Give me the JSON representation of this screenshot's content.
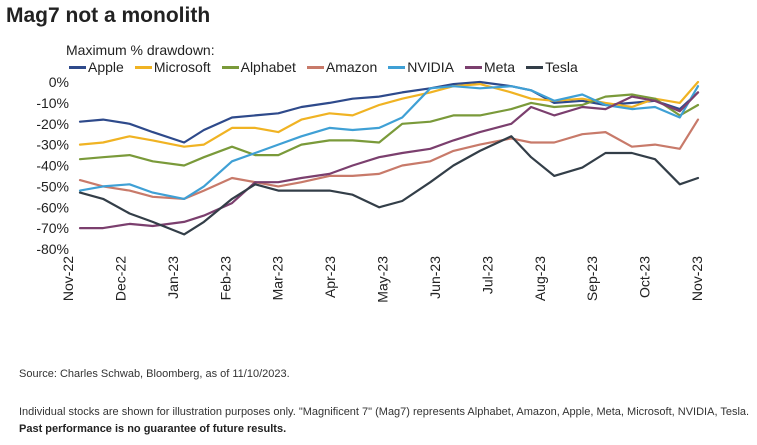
{
  "title": "Mag7 not a monolith",
  "legend_title": "Maximum % drawdown:",
  "source": "Source: Charles Schwab, Bloomberg, as of 11/10/2023.",
  "note_text": "Individual stocks are shown for illustration purposes only. \"Magnificent 7\" (Mag7) represents Alphabet, Amazon, Apple, Meta, Microsoft, NVIDIA, Tesla.",
  "note_bold": "Past performance is no guarantee of future results.",
  "chart_data": {
    "type": "line",
    "x_ticks": [
      "Nov-22",
      "Dec-22",
      "Jan-23",
      "Feb-23",
      "Mar-23",
      "Apr-23",
      "May-23",
      "Jun-23",
      "Jul-23",
      "Aug-23",
      "Sep-23",
      "Oct-23",
      "Nov-23"
    ],
    "y_ticks": [
      "0%",
      "-10%",
      "-20%",
      "-30%",
      "-40%",
      "-50%",
      "-60%",
      "-70%",
      "-80%"
    ],
    "ylim": [
      -80,
      0
    ],
    "x_range": [
      "2022-11-01",
      "2023-11-10"
    ],
    "grid": false,
    "legend_position": "top",
    "series": [
      {
        "name": "Apple",
        "color": "#2e4a8b",
        "points": [
          [
            "2022-11-01",
            -19
          ],
          [
            "2022-11-15",
            -18
          ],
          [
            "2022-12-01",
            -20
          ],
          [
            "2022-12-15",
            -24
          ],
          [
            "2023-01-03",
            -29
          ],
          [
            "2023-01-15",
            -23
          ],
          [
            "2023-02-01",
            -17
          ],
          [
            "2023-02-15",
            -16
          ],
          [
            "2023-03-01",
            -15
          ],
          [
            "2023-03-15",
            -12
          ],
          [
            "2023-04-01",
            -10
          ],
          [
            "2023-04-15",
            -8
          ],
          [
            "2023-05-01",
            -7
          ],
          [
            "2023-05-15",
            -5
          ],
          [
            "2023-06-01",
            -3
          ],
          [
            "2023-06-15",
            -1
          ],
          [
            "2023-07-01",
            0
          ],
          [
            "2023-07-20",
            -2
          ],
          [
            "2023-08-01",
            -4
          ],
          [
            "2023-08-15",
            -10
          ],
          [
            "2023-09-01",
            -9
          ],
          [
            "2023-09-15",
            -11
          ],
          [
            "2023-10-01",
            -10
          ],
          [
            "2023-10-15",
            -9
          ],
          [
            "2023-10-30",
            -13
          ],
          [
            "2023-11-10",
            -5
          ]
        ]
      },
      {
        "name": "Microsoft",
        "color": "#f0b323",
        "points": [
          [
            "2022-11-01",
            -30
          ],
          [
            "2022-11-15",
            -29
          ],
          [
            "2022-12-01",
            -26
          ],
          [
            "2022-12-15",
            -28
          ],
          [
            "2023-01-03",
            -31
          ],
          [
            "2023-01-15",
            -30
          ],
          [
            "2023-02-01",
            -22
          ],
          [
            "2023-02-15",
            -22
          ],
          [
            "2023-03-01",
            -24
          ],
          [
            "2023-03-15",
            -18
          ],
          [
            "2023-04-01",
            -15
          ],
          [
            "2023-04-15",
            -16
          ],
          [
            "2023-05-01",
            -11
          ],
          [
            "2023-05-15",
            -8
          ],
          [
            "2023-06-01",
            -5
          ],
          [
            "2023-06-15",
            -2
          ],
          [
            "2023-07-01",
            -1
          ],
          [
            "2023-07-20",
            -5
          ],
          [
            "2023-08-01",
            -8
          ],
          [
            "2023-08-15",
            -9
          ],
          [
            "2023-09-01",
            -8
          ],
          [
            "2023-09-15",
            -10
          ],
          [
            "2023-10-01",
            -12
          ],
          [
            "2023-10-15",
            -8
          ],
          [
            "2023-10-30",
            -10
          ],
          [
            "2023-11-10",
            0
          ]
        ]
      },
      {
        "name": "Alphabet",
        "color": "#7a9a3a",
        "points": [
          [
            "2022-11-01",
            -37
          ],
          [
            "2022-11-15",
            -36
          ],
          [
            "2022-12-01",
            -35
          ],
          [
            "2022-12-15",
            -38
          ],
          [
            "2023-01-03",
            -40
          ],
          [
            "2023-01-15",
            -36
          ],
          [
            "2023-02-01",
            -31
          ],
          [
            "2023-02-15",
            -35
          ],
          [
            "2023-03-01",
            -35
          ],
          [
            "2023-03-15",
            -30
          ],
          [
            "2023-04-01",
            -28
          ],
          [
            "2023-04-15",
            -28
          ],
          [
            "2023-05-01",
            -29
          ],
          [
            "2023-05-15",
            -20
          ],
          [
            "2023-06-01",
            -19
          ],
          [
            "2023-06-15",
            -16
          ],
          [
            "2023-07-01",
            -16
          ],
          [
            "2023-07-20",
            -13
          ],
          [
            "2023-08-01",
            -10
          ],
          [
            "2023-08-15",
            -12
          ],
          [
            "2023-09-01",
            -11
          ],
          [
            "2023-09-15",
            -7
          ],
          [
            "2023-10-01",
            -6
          ],
          [
            "2023-10-15",
            -8
          ],
          [
            "2023-10-30",
            -16
          ],
          [
            "2023-11-10",
            -11
          ]
        ]
      },
      {
        "name": "Amazon",
        "color": "#c87a6a",
        "points": [
          [
            "2022-11-01",
            -47
          ],
          [
            "2022-11-15",
            -50
          ],
          [
            "2022-12-01",
            -52
          ],
          [
            "2022-12-15",
            -55
          ],
          [
            "2023-01-03",
            -56
          ],
          [
            "2023-01-15",
            -52
          ],
          [
            "2023-02-01",
            -46
          ],
          [
            "2023-02-15",
            -48
          ],
          [
            "2023-03-01",
            -50
          ],
          [
            "2023-03-15",
            -48
          ],
          [
            "2023-04-01",
            -45
          ],
          [
            "2023-04-15",
            -45
          ],
          [
            "2023-05-01",
            -44
          ],
          [
            "2023-05-15",
            -40
          ],
          [
            "2023-06-01",
            -38
          ],
          [
            "2023-06-15",
            -33
          ],
          [
            "2023-07-01",
            -30
          ],
          [
            "2023-07-20",
            -27
          ],
          [
            "2023-08-01",
            -29
          ],
          [
            "2023-08-15",
            -29
          ],
          [
            "2023-09-01",
            -25
          ],
          [
            "2023-09-15",
            -24
          ],
          [
            "2023-10-01",
            -31
          ],
          [
            "2023-10-15",
            -30
          ],
          [
            "2023-10-30",
            -32
          ],
          [
            "2023-11-10",
            -18
          ]
        ]
      },
      {
        "name": "NVIDIA",
        "color": "#3fa0d5",
        "points": [
          [
            "2022-11-01",
            -52
          ],
          [
            "2022-11-15",
            -50
          ],
          [
            "2022-12-01",
            -49
          ],
          [
            "2022-12-15",
            -53
          ],
          [
            "2023-01-03",
            -56
          ],
          [
            "2023-01-15",
            -50
          ],
          [
            "2023-02-01",
            -38
          ],
          [
            "2023-02-15",
            -34
          ],
          [
            "2023-03-01",
            -30
          ],
          [
            "2023-03-15",
            -26
          ],
          [
            "2023-04-01",
            -22
          ],
          [
            "2023-04-15",
            -23
          ],
          [
            "2023-05-01",
            -22
          ],
          [
            "2023-05-15",
            -17
          ],
          [
            "2023-06-01",
            -3
          ],
          [
            "2023-06-15",
            -2
          ],
          [
            "2023-07-01",
            -3
          ],
          [
            "2023-07-20",
            -2
          ],
          [
            "2023-08-01",
            -4
          ],
          [
            "2023-08-15",
            -9
          ],
          [
            "2023-09-01",
            -6
          ],
          [
            "2023-09-15",
            -11
          ],
          [
            "2023-10-01",
            -13
          ],
          [
            "2023-10-15",
            -12
          ],
          [
            "2023-10-30",
            -17
          ],
          [
            "2023-11-10",
            -2
          ]
        ]
      },
      {
        "name": "Meta",
        "color": "#7b3f6e",
        "points": [
          [
            "2022-11-01",
            -70
          ],
          [
            "2022-11-15",
            -70
          ],
          [
            "2022-12-01",
            -68
          ],
          [
            "2022-12-15",
            -69
          ],
          [
            "2023-01-03",
            -67
          ],
          [
            "2023-01-15",
            -64
          ],
          [
            "2023-02-01",
            -58
          ],
          [
            "2023-02-15",
            -48
          ],
          [
            "2023-03-01",
            -48
          ],
          [
            "2023-03-15",
            -46
          ],
          [
            "2023-04-01",
            -44
          ],
          [
            "2023-04-15",
            -40
          ],
          [
            "2023-05-01",
            -36
          ],
          [
            "2023-05-15",
            -34
          ],
          [
            "2023-06-01",
            -32
          ],
          [
            "2023-06-15",
            -28
          ],
          [
            "2023-07-01",
            -24
          ],
          [
            "2023-07-20",
            -20
          ],
          [
            "2023-08-01",
            -12
          ],
          [
            "2023-08-15",
            -16
          ],
          [
            "2023-09-01",
            -12
          ],
          [
            "2023-09-15",
            -13
          ],
          [
            "2023-10-01",
            -7
          ],
          [
            "2023-10-15",
            -9
          ],
          [
            "2023-10-30",
            -14
          ],
          [
            "2023-11-10",
            -5
          ]
        ]
      },
      {
        "name": "Tesla",
        "color": "#333e48",
        "points": [
          [
            "2022-11-01",
            -53
          ],
          [
            "2022-11-15",
            -56
          ],
          [
            "2022-12-01",
            -63
          ],
          [
            "2022-12-15",
            -67
          ],
          [
            "2023-01-03",
            -73
          ],
          [
            "2023-01-15",
            -67
          ],
          [
            "2023-02-01",
            -56
          ],
          [
            "2023-02-15",
            -49
          ],
          [
            "2023-03-01",
            -52
          ],
          [
            "2023-03-15",
            -52
          ],
          [
            "2023-04-01",
            -52
          ],
          [
            "2023-04-15",
            -54
          ],
          [
            "2023-05-01",
            -60
          ],
          [
            "2023-05-15",
            -57
          ],
          [
            "2023-06-01",
            -48
          ],
          [
            "2023-06-15",
            -40
          ],
          [
            "2023-07-01",
            -33
          ],
          [
            "2023-07-20",
            -26
          ],
          [
            "2023-08-01",
            -36
          ],
          [
            "2023-08-15",
            -45
          ],
          [
            "2023-09-01",
            -41
          ],
          [
            "2023-09-15",
            -34
          ],
          [
            "2023-10-01",
            -34
          ],
          [
            "2023-10-15",
            -37
          ],
          [
            "2023-10-30",
            -49
          ],
          [
            "2023-11-10",
            -46
          ]
        ]
      }
    ]
  }
}
